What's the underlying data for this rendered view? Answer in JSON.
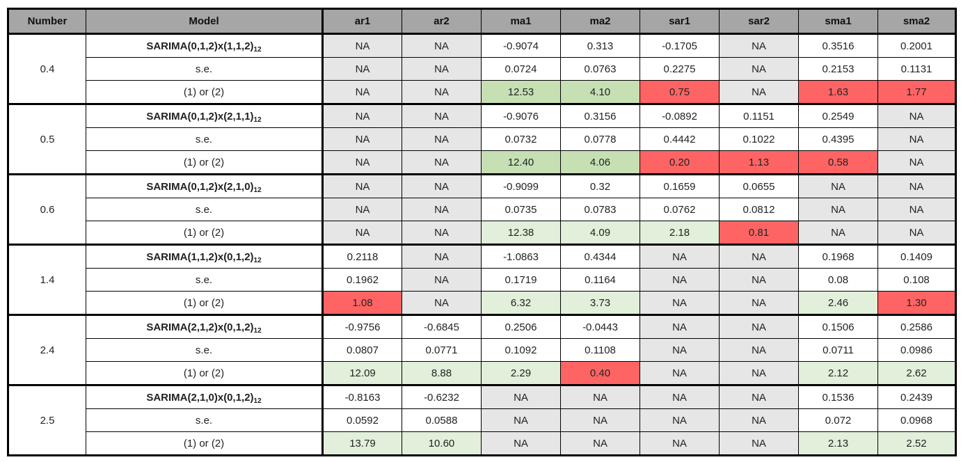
{
  "headers": [
    "Number",
    "Model",
    "ar1",
    "ar2",
    "ma1",
    "ma2",
    "sar1",
    "sar2",
    "sma1",
    "sma2"
  ],
  "colors": {
    "header_gray": "#a6a6a6",
    "na_gray": "#e6e6e6",
    "significant_green": "#c6e0b4",
    "significant_light_green": "#e2efda",
    "not_significant_red": "#ff6464",
    "white": "#ffffff"
  },
  "groups": [
    {
      "number": "0.4",
      "rows": [
        {
          "label_main": "SARIMA(0,1,2)x(1,1,2)",
          "label_sub": "12",
          "cells": [
            {
              "v": "NA",
              "c": "na"
            },
            {
              "v": "NA",
              "c": "na"
            },
            {
              "v": "-0.9074",
              "c": "white"
            },
            {
              "v": "0.313",
              "c": "white"
            },
            {
              "v": "-0.1705",
              "c": "white"
            },
            {
              "v": "NA",
              "c": "na"
            },
            {
              "v": "0.3516",
              "c": "white"
            },
            {
              "v": "0.2001",
              "c": "white"
            }
          ]
        },
        {
          "label_main": "s.e.",
          "label_sub": "",
          "cells": [
            {
              "v": "NA",
              "c": "na"
            },
            {
              "v": "NA",
              "c": "na"
            },
            {
              "v": "0.0724",
              "c": "white"
            },
            {
              "v": "0.0763",
              "c": "white"
            },
            {
              "v": "0.2275",
              "c": "white"
            },
            {
              "v": "NA",
              "c": "na"
            },
            {
              "v": "0.2153",
              "c": "white"
            },
            {
              "v": "0.1131",
              "c": "white"
            }
          ]
        },
        {
          "label_main": "(1) or (2)",
          "label_sub": "",
          "cells": [
            {
              "v": "NA",
              "c": "na"
            },
            {
              "v": "NA",
              "c": "na"
            },
            {
              "v": "12.53",
              "c": "green"
            },
            {
              "v": "4.10",
              "c": "green"
            },
            {
              "v": "0.75",
              "c": "red"
            },
            {
              "v": "NA",
              "c": "na"
            },
            {
              "v": "1.63",
              "c": "red"
            },
            {
              "v": "1.77",
              "c": "red"
            }
          ]
        }
      ]
    },
    {
      "number": "0.5",
      "rows": [
        {
          "label_main": "SARIMA(0,1,2)x(2,1,1)",
          "label_sub": "12",
          "cells": [
            {
              "v": "NA",
              "c": "na"
            },
            {
              "v": "NA",
              "c": "na"
            },
            {
              "v": "-0.9076",
              "c": "white"
            },
            {
              "v": "0.3156",
              "c": "white"
            },
            {
              "v": "-0.0892",
              "c": "white"
            },
            {
              "v": "0.1151",
              "c": "white"
            },
            {
              "v": "0.2549",
              "c": "white"
            },
            {
              "v": "NA",
              "c": "na"
            }
          ]
        },
        {
          "label_main": "s.e.",
          "label_sub": "",
          "cells": [
            {
              "v": "NA",
              "c": "na"
            },
            {
              "v": "NA",
              "c": "na"
            },
            {
              "v": "0.0732",
              "c": "white"
            },
            {
              "v": "0.0778",
              "c": "white"
            },
            {
              "v": "0.4442",
              "c": "white"
            },
            {
              "v": "0.1022",
              "c": "white"
            },
            {
              "v": "0.4395",
              "c": "white"
            },
            {
              "v": "NA",
              "c": "na"
            }
          ]
        },
        {
          "label_main": "(1) or (2)",
          "label_sub": "",
          "cells": [
            {
              "v": "NA",
              "c": "na"
            },
            {
              "v": "NA",
              "c": "na"
            },
            {
              "v": "12.40",
              "c": "green"
            },
            {
              "v": "4.06",
              "c": "green"
            },
            {
              "v": "0.20",
              "c": "red"
            },
            {
              "v": "1.13",
              "c": "red"
            },
            {
              "v": "0.58",
              "c": "red"
            },
            {
              "v": "NA",
              "c": "na"
            }
          ]
        }
      ]
    },
    {
      "number": "0.6",
      "rows": [
        {
          "label_main": "SARIMA(0,1,2)x(2,1,0)",
          "label_sub": "12",
          "cells": [
            {
              "v": "NA",
              "c": "na"
            },
            {
              "v": "NA",
              "c": "na"
            },
            {
              "v": "-0.9099",
              "c": "white"
            },
            {
              "v": "0.32",
              "c": "white"
            },
            {
              "v": "0.1659",
              "c": "white"
            },
            {
              "v": "0.0655",
              "c": "white"
            },
            {
              "v": "NA",
              "c": "na"
            },
            {
              "v": "NA",
              "c": "na"
            }
          ]
        },
        {
          "label_main": "s.e.",
          "label_sub": "",
          "cells": [
            {
              "v": "NA",
              "c": "na"
            },
            {
              "v": "NA",
              "c": "na"
            },
            {
              "v": "0.0735",
              "c": "white"
            },
            {
              "v": "0.0783",
              "c": "white"
            },
            {
              "v": "0.0762",
              "c": "white"
            },
            {
              "v": "0.0812",
              "c": "white"
            },
            {
              "v": "NA",
              "c": "na"
            },
            {
              "v": "NA",
              "c": "na"
            }
          ]
        },
        {
          "label_main": "(1) or (2)",
          "label_sub": "",
          "cells": [
            {
              "v": "NA",
              "c": "na"
            },
            {
              "v": "NA",
              "c": "na"
            },
            {
              "v": "12.38",
              "c": "lgreen"
            },
            {
              "v": "4.09",
              "c": "lgreen"
            },
            {
              "v": "2.18",
              "c": "lgreen"
            },
            {
              "v": "0.81",
              "c": "red"
            },
            {
              "v": "NA",
              "c": "na"
            },
            {
              "v": "NA",
              "c": "na"
            }
          ]
        }
      ]
    },
    {
      "number": "1.4",
      "rows": [
        {
          "label_main": "SARIMA(1,1,2)x(0,1,2)",
          "label_sub": "12",
          "cells": [
            {
              "v": "0.2118",
              "c": "white"
            },
            {
              "v": "NA",
              "c": "na"
            },
            {
              "v": "-1.0863",
              "c": "white"
            },
            {
              "v": "0.4344",
              "c": "white"
            },
            {
              "v": "NA",
              "c": "na"
            },
            {
              "v": "NA",
              "c": "na"
            },
            {
              "v": "0.1968",
              "c": "white"
            },
            {
              "v": "0.1409",
              "c": "white"
            }
          ]
        },
        {
          "label_main": "s.e.",
          "label_sub": "",
          "cells": [
            {
              "v": "0.1962",
              "c": "white"
            },
            {
              "v": "NA",
              "c": "na"
            },
            {
              "v": "0.1719",
              "c": "white"
            },
            {
              "v": "0.1164",
              "c": "white"
            },
            {
              "v": "NA",
              "c": "na"
            },
            {
              "v": "NA",
              "c": "na"
            },
            {
              "v": "0.08",
              "c": "white"
            },
            {
              "v": "0.108",
              "c": "white"
            }
          ]
        },
        {
          "label_main": "(1) or (2)",
          "label_sub": "",
          "cells": [
            {
              "v": "1.08",
              "c": "red"
            },
            {
              "v": "NA",
              "c": "na"
            },
            {
              "v": "6.32",
              "c": "lgreen"
            },
            {
              "v": "3.73",
              "c": "lgreen"
            },
            {
              "v": "NA",
              "c": "na"
            },
            {
              "v": "NA",
              "c": "na"
            },
            {
              "v": "2.46",
              "c": "lgreen"
            },
            {
              "v": "1.30",
              "c": "red"
            }
          ]
        }
      ]
    },
    {
      "number": "2.4",
      "rows": [
        {
          "label_main": "SARIMA(2,1,2)x(0,1,2)",
          "label_sub": "12",
          "cells": [
            {
              "v": "-0.9756",
              "c": "white"
            },
            {
              "v": "-0.6845",
              "c": "white"
            },
            {
              "v": "0.2506",
              "c": "white"
            },
            {
              "v": "-0.0443",
              "c": "white"
            },
            {
              "v": "NA",
              "c": "na"
            },
            {
              "v": "NA",
              "c": "na"
            },
            {
              "v": "0.1506",
              "c": "white"
            },
            {
              "v": "0.2586",
              "c": "white"
            }
          ]
        },
        {
          "label_main": "s.e.",
          "label_sub": "",
          "cells": [
            {
              "v": "0.0807",
              "c": "white"
            },
            {
              "v": "0.0771",
              "c": "white"
            },
            {
              "v": "0.1092",
              "c": "white"
            },
            {
              "v": "0.1108",
              "c": "white"
            },
            {
              "v": "NA",
              "c": "na"
            },
            {
              "v": "NA",
              "c": "na"
            },
            {
              "v": "0.0711",
              "c": "white"
            },
            {
              "v": "0.0986",
              "c": "white"
            }
          ]
        },
        {
          "label_main": "(1) or (2)",
          "label_sub": "",
          "cells": [
            {
              "v": "12.09",
              "c": "lgreen"
            },
            {
              "v": "8.88",
              "c": "lgreen"
            },
            {
              "v": "2.29",
              "c": "lgreen"
            },
            {
              "v": "0.40",
              "c": "red"
            },
            {
              "v": "NA",
              "c": "na"
            },
            {
              "v": "NA",
              "c": "na"
            },
            {
              "v": "2.12",
              "c": "lgreen"
            },
            {
              "v": "2.62",
              "c": "lgreen"
            }
          ]
        }
      ]
    },
    {
      "number": "2.5",
      "rows": [
        {
          "label_main": "SARIMA(2,1,0)x(0,1,2)",
          "label_sub": "12",
          "cells": [
            {
              "v": "-0.8163",
              "c": "white"
            },
            {
              "v": "-0.6232",
              "c": "white"
            },
            {
              "v": "NA",
              "c": "na"
            },
            {
              "v": "NA",
              "c": "na"
            },
            {
              "v": "NA",
              "c": "na"
            },
            {
              "v": "NA",
              "c": "na"
            },
            {
              "v": "0.1536",
              "c": "white"
            },
            {
              "v": "0.2439",
              "c": "white"
            }
          ]
        },
        {
          "label_main": "s.e.",
          "label_sub": "",
          "cells": [
            {
              "v": "0.0592",
              "c": "white"
            },
            {
              "v": "0.0588",
              "c": "white"
            },
            {
              "v": "NA",
              "c": "na"
            },
            {
              "v": "NA",
              "c": "na"
            },
            {
              "v": "NA",
              "c": "na"
            },
            {
              "v": "NA",
              "c": "na"
            },
            {
              "v": "0.072",
              "c": "white"
            },
            {
              "v": "0.0968",
              "c": "white"
            }
          ]
        },
        {
          "label_main": "(1) or (2)",
          "label_sub": "",
          "cells": [
            {
              "v": "13.79",
              "c": "lgreen"
            },
            {
              "v": "10.60",
              "c": "lgreen"
            },
            {
              "v": "NA",
              "c": "na"
            },
            {
              "v": "NA",
              "c": "na"
            },
            {
              "v": "NA",
              "c": "na"
            },
            {
              "v": "NA",
              "c": "na"
            },
            {
              "v": "2.13",
              "c": "lgreen"
            },
            {
              "v": "2.52",
              "c": "lgreen"
            }
          ]
        }
      ]
    }
  ]
}
